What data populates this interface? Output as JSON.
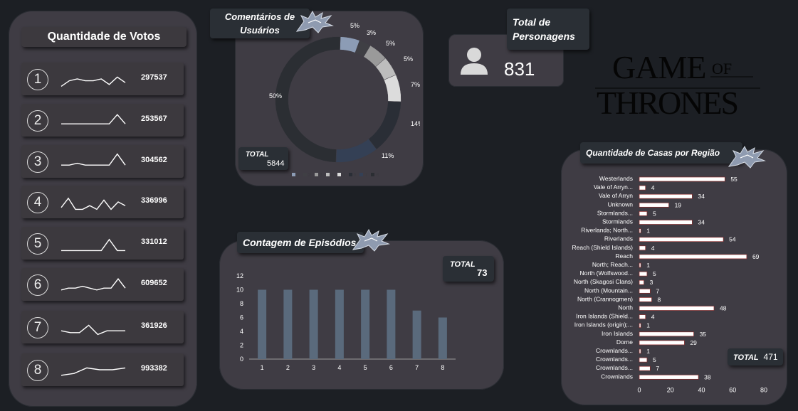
{
  "votes": {
    "title": "Quantidade de Votos",
    "rows": [
      {
        "n": "1",
        "value": "297537",
        "spark": [
          9,
          6,
          5,
          6,
          6,
          5,
          8,
          4,
          7
        ]
      },
      {
        "n": "2",
        "value": "253567",
        "spark": [
          7,
          7,
          7,
          7,
          7,
          7,
          7,
          2,
          7
        ]
      },
      {
        "n": "3",
        "value": "304562",
        "spark": [
          7,
          7,
          6,
          7,
          7,
          7,
          7,
          1,
          7
        ]
      },
      {
        "n": "4",
        "value": "336996",
        "spark": [
          8,
          3,
          9,
          9,
          7,
          9,
          4,
          9,
          5,
          7
        ]
      },
      {
        "n": "5",
        "value": "331012",
        "spark": [
          9,
          9,
          9,
          9,
          9,
          9,
          3,
          9,
          9
        ]
      },
      {
        "n": "6",
        "value": "609652",
        "spark": [
          8,
          7,
          7,
          6,
          7,
          8,
          7,
          7,
          2,
          7
        ]
      },
      {
        "n": "7",
        "value": "361926",
        "spark": [
          7,
          8,
          8,
          4,
          9,
          7,
          7,
          7
        ]
      },
      {
        "n": "8",
        "value": "993382",
        "spark": [
          8,
          7,
          4,
          5,
          5,
          4
        ]
      }
    ]
  },
  "comments": {
    "title_line1": "Comentários de",
    "title_line2": "Usuários",
    "total_label": "TOTAL",
    "total_value": "5844",
    "legend": [
      "1",
      "2",
      "3",
      "4",
      "5",
      "6",
      "7",
      "8"
    ]
  },
  "personagens": {
    "title_line1": "Total de",
    "title_line2": "Personagens",
    "value": "831"
  },
  "logo": {
    "line1": "GAME",
    "of": "OF",
    "line2": "THRONES"
  },
  "episodes": {
    "title": "Contagem de Episódios",
    "total_label": "TOTAL",
    "total_value": "73"
  },
  "houses": {
    "title": "Quantidade de Casas por Região",
    "total_label": "TOTAL",
    "total_value": "471"
  },
  "chart_data": [
    {
      "type": "pie",
      "title": "Comentários de Usuários",
      "categories": [
        "1",
        "2",
        "3",
        "4",
        "5",
        "6",
        "7",
        "8"
      ],
      "values": [
        5,
        3,
        5,
        5,
        7,
        14,
        11,
        50
      ],
      "labels": [
        "5%",
        "3%",
        "5%",
        "5%",
        "7%",
        "14%",
        "11%",
        "50%"
      ],
      "colors": [
        "#8c9cb5",
        "#3f3f44",
        "#9a9a9a",
        "#bdbdbd",
        "#dcdcdc",
        "#2a2e36",
        "#344055",
        "#2b2e33"
      ]
    },
    {
      "type": "bar",
      "title": "Contagem de Episódios",
      "categories": [
        "1",
        "2",
        "3",
        "4",
        "5",
        "6",
        "7",
        "8"
      ],
      "values": [
        10,
        10,
        10,
        10,
        10,
        10,
        7,
        6
      ],
      "ylim": [
        0,
        12
      ],
      "yticks": [
        "0",
        "2",
        "4",
        "6",
        "8",
        "10",
        "12"
      ]
    },
    {
      "type": "bar",
      "orientation": "horizontal",
      "title": "Quantidade de Casas por Região",
      "categories": [
        "Westerlands",
        "Vale of Arryn...",
        "Vale of Arryn",
        "Unknown",
        "Stormlands...",
        "Stormlands",
        "Riverlands; North...",
        "Riverlands",
        "Reach (Shield Islands)",
        "Reach",
        "North; Reach...",
        "North (Wolfswood...",
        "North (Skagosi Clans)",
        "North (Mountain...",
        "North (Crannogmen)",
        "North",
        "Iron Islands (Shield...",
        "Iron Islands (origin);...",
        "Iron Islands",
        "Dorne",
        "Crownlands...",
        "Crownlands...",
        "Crownlands...",
        "Crownlands"
      ],
      "values": [
        55,
        4,
        34,
        19,
        5,
        34,
        1,
        54,
        4,
        69,
        1,
        5,
        3,
        7,
        8,
        48,
        4,
        1,
        35,
        29,
        1,
        5,
        7,
        38
      ],
      "xlim": [
        0,
        80
      ],
      "xticks": [
        "0",
        "20",
        "40",
        "60",
        "80"
      ]
    }
  ]
}
